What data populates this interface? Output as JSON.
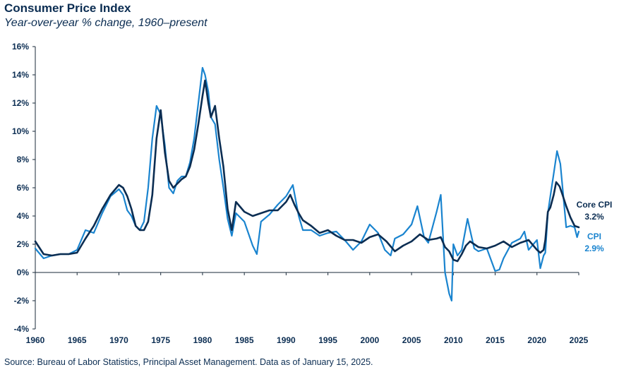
{
  "colors": {
    "core_cpi": "#0b2d52",
    "cpi": "#1a84cf",
    "text": "#0b2d52",
    "axis": "#1a2a3a"
  },
  "source": "Source: Bureau of Labor Statistics, Principal Asset Management. Data as of January 15, 2025.",
  "chart_data": {
    "type": "line",
    "title": "Consumer Price Index",
    "subtitle": "Year-over-year % change, 1960–present",
    "xlabel": "",
    "ylabel": "",
    "xlim": [
      1960,
      2025
    ],
    "ylim": [
      -4,
      16
    ],
    "x_ticks": [
      1960,
      1965,
      1970,
      1975,
      1980,
      1985,
      1990,
      1995,
      2000,
      2005,
      2010,
      2015,
      2020,
      2025
    ],
    "x_tick_labels": [
      "1960",
      "1965",
      "1970",
      "1975",
      "1980",
      "1985",
      "1990",
      "1995",
      "2000",
      "2005",
      "2010",
      "2015",
      "2020",
      "2025"
    ],
    "y_ticks": [
      -4,
      -2,
      0,
      2,
      4,
      6,
      8,
      10,
      12,
      14,
      16
    ],
    "y_tick_labels": [
      "-4%",
      "-2%",
      "0%",
      "2%",
      "4%",
      "6%",
      "8%",
      "10%",
      "12%",
      "14%",
      "16%"
    ],
    "grid": false,
    "series": [
      {
        "name": "Core CPI",
        "end_label": "3.2%",
        "x": [
          1960.0,
          1961.0,
          1962.0,
          1963.0,
          1964.0,
          1965.0,
          1966.0,
          1967.0,
          1968.0,
          1969.0,
          1970.0,
          1970.5,
          1971.0,
          1971.5,
          1972.0,
          1972.5,
          1973.0,
          1973.5,
          1974.0,
          1974.5,
          1975.0,
          1975.5,
          1976.0,
          1976.5,
          1977.0,
          1977.5,
          1978.0,
          1978.5,
          1979.0,
          1979.5,
          1980.0,
          1980.3,
          1980.7,
          1981.0,
          1981.5,
          1982.0,
          1982.5,
          1983.0,
          1983.5,
          1984.0,
          1985.0,
          1986.0,
          1987.0,
          1988.0,
          1989.0,
          1990.0,
          1990.5,
          1991.0,
          1991.5,
          1992.0,
          1993.0,
          1994.0,
          1995.0,
          1996.0,
          1997.0,
          1998.0,
          1999.0,
          2000.0,
          2001.0,
          2002.0,
          2003.0,
          2004.0,
          2005.0,
          2006.0,
          2007.0,
          2008.0,
          2008.5,
          2009.0,
          2009.5,
          2010.0,
          2010.5,
          2011.0,
          2011.5,
          2012.0,
          2013.0,
          2014.0,
          2015.0,
          2016.0,
          2017.0,
          2018.0,
          2019.0,
          2020.0,
          2020.4,
          2020.8,
          2021.0,
          2021.3,
          2021.6,
          2022.0,
          2022.3,
          2022.7,
          2023.0,
          2023.5,
          2024.0,
          2024.5,
          2025.0
        ],
        "values": [
          2.2,
          1.3,
          1.2,
          1.3,
          1.3,
          1.4,
          2.4,
          3.3,
          4.5,
          5.5,
          6.2,
          6.0,
          5.4,
          4.5,
          3.3,
          3.0,
          3.0,
          3.6,
          5.5,
          9.5,
          11.5,
          8.5,
          6.5,
          6.0,
          6.3,
          6.6,
          6.8,
          7.5,
          8.7,
          10.5,
          12.5,
          13.6,
          12.0,
          11.0,
          11.8,
          9.5,
          7.5,
          4.5,
          3.0,
          5.0,
          4.3,
          4.0,
          4.2,
          4.4,
          4.4,
          5.0,
          5.5,
          4.8,
          4.2,
          3.7,
          3.3,
          2.8,
          3.0,
          2.6,
          2.3,
          2.3,
          2.1,
          2.5,
          2.7,
          2.2,
          1.5,
          1.9,
          2.2,
          2.7,
          2.3,
          2.4,
          2.5,
          1.8,
          1.5,
          0.9,
          0.8,
          1.3,
          1.9,
          2.2,
          1.8,
          1.7,
          1.9,
          2.2,
          1.8,
          2.1,
          2.3,
          1.6,
          1.4,
          1.6,
          2.3,
          4.3,
          4.6,
          5.5,
          6.4,
          6.1,
          5.6,
          4.7,
          3.9,
          3.3,
          3.2
        ]
      },
      {
        "name": "CPI",
        "end_label": "2.9%",
        "x": [
          1960.0,
          1961.0,
          1962.0,
          1963.0,
          1964.0,
          1965.0,
          1966.0,
          1967.0,
          1968.0,
          1969.0,
          1970.0,
          1970.5,
          1971.0,
          1971.5,
          1972.0,
          1972.5,
          1973.0,
          1973.5,
          1974.0,
          1974.5,
          1975.0,
          1975.5,
          1976.0,
          1976.5,
          1977.0,
          1977.5,
          1978.0,
          1978.5,
          1979.0,
          1979.5,
          1980.0,
          1980.3,
          1980.7,
          1981.0,
          1981.5,
          1982.0,
          1982.5,
          1983.0,
          1983.5,
          1984.0,
          1985.0,
          1986.0,
          1986.5,
          1987.0,
          1988.0,
          1989.0,
          1990.0,
          1990.8,
          1991.5,
          1992.0,
          1993.0,
          1994.0,
          1995.0,
          1996.0,
          1997.0,
          1998.0,
          1999.0,
          2000.0,
          2001.0,
          2001.8,
          2002.5,
          2003.0,
          2004.0,
          2005.0,
          2005.7,
          2006.5,
          2007.0,
          2008.0,
          2008.5,
          2009.0,
          2009.5,
          2009.8,
          2010.0,
          2010.5,
          2011.0,
          2011.7,
          2012.0,
          2012.5,
          2013.0,
          2014.0,
          2015.0,
          2015.5,
          2016.0,
          2017.0,
          2018.0,
          2018.5,
          2019.0,
          2020.0,
          2020.4,
          2020.8,
          2021.0,
          2021.3,
          2021.6,
          2022.0,
          2022.4,
          2022.8,
          2023.0,
          2023.5,
          2024.0,
          2024.5,
          2024.8,
          2025.0
        ],
        "values": [
          1.7,
          1.0,
          1.2,
          1.3,
          1.3,
          1.6,
          3.0,
          2.8,
          4.2,
          5.4,
          5.9,
          5.5,
          4.4,
          4.0,
          3.3,
          3.0,
          3.6,
          6.0,
          9.5,
          11.8,
          11.2,
          9.0,
          6.0,
          5.6,
          6.5,
          6.8,
          6.8,
          7.8,
          9.5,
          12.0,
          14.5,
          14.0,
          12.8,
          11.0,
          10.5,
          8.0,
          6.0,
          3.8,
          2.6,
          4.2,
          3.6,
          1.9,
          1.3,
          3.6,
          4.1,
          4.8,
          5.4,
          6.2,
          4.0,
          3.0,
          3.0,
          2.6,
          2.8,
          2.9,
          2.3,
          1.6,
          2.2,
          3.4,
          2.8,
          1.6,
          1.2,
          2.4,
          2.7,
          3.4,
          4.7,
          2.5,
          2.1,
          4.3,
          5.5,
          0.0,
          -1.5,
          -2.0,
          2.0,
          1.2,
          1.6,
          3.8,
          3.0,
          1.7,
          1.5,
          1.7,
          0.1,
          0.2,
          1.0,
          2.1,
          2.4,
          2.9,
          1.6,
          2.3,
          0.3,
          1.2,
          1.4,
          4.2,
          5.4,
          7.0,
          8.6,
          7.7,
          6.4,
          3.2,
          3.3,
          3.2,
          2.5,
          2.9
        ]
      }
    ]
  }
}
